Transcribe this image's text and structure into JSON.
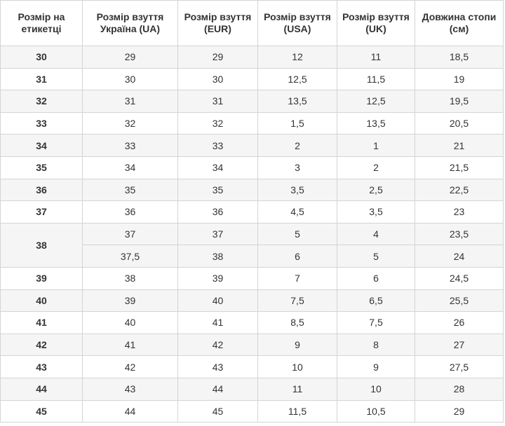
{
  "table": {
    "header": [
      "Розмір на етикетці",
      "Розмір взуття Україна (UA)",
      "Розмір взуття (EUR)",
      "Розмір взуття (USA)",
      "Розмір взуття (UK)",
      "Довжина стопи (см)"
    ],
    "rows": [
      {
        "label": "30",
        "cells": [
          [
            "29",
            "29",
            "12",
            "11",
            "18,5"
          ]
        ]
      },
      {
        "label": "31",
        "cells": [
          [
            "30",
            "30",
            "12,5",
            "11,5",
            "19"
          ]
        ]
      },
      {
        "label": "32",
        "cells": [
          [
            "31",
            "31",
            "13,5",
            "12,5",
            "19,5"
          ]
        ]
      },
      {
        "label": "33",
        "cells": [
          [
            "32",
            "32",
            "1,5",
            "13,5",
            "20,5"
          ]
        ]
      },
      {
        "label": "34",
        "cells": [
          [
            "33",
            "33",
            "2",
            "1",
            "21"
          ]
        ]
      },
      {
        "label": "35",
        "cells": [
          [
            "34",
            "34",
            "3",
            "2",
            "21,5"
          ]
        ]
      },
      {
        "label": "36",
        "cells": [
          [
            "35",
            "35",
            "3,5",
            "2,5",
            "22,5"
          ]
        ]
      },
      {
        "label": "37",
        "cells": [
          [
            "36",
            "36",
            "4,5",
            "3,5",
            "23"
          ]
        ]
      },
      {
        "label": "38",
        "cells": [
          [
            "37",
            "37",
            "5",
            "4",
            "23,5"
          ],
          [
            "37,5",
            "38",
            "6",
            "5",
            "24"
          ]
        ]
      },
      {
        "label": "39",
        "cells": [
          [
            "38",
            "39",
            "7",
            "6",
            "24,5"
          ]
        ]
      },
      {
        "label": "40",
        "cells": [
          [
            "39",
            "40",
            "7,5",
            "6,5",
            "25,5"
          ]
        ]
      },
      {
        "label": "41",
        "cells": [
          [
            "40",
            "41",
            "8,5",
            "7,5",
            "26"
          ]
        ]
      },
      {
        "label": "42",
        "cells": [
          [
            "41",
            "42",
            "9",
            "8",
            "27"
          ]
        ]
      },
      {
        "label": "43",
        "cells": [
          [
            "42",
            "43",
            "10",
            "9",
            "27,5"
          ]
        ]
      },
      {
        "label": "44",
        "cells": [
          [
            "43",
            "44",
            "11",
            "10",
            "28"
          ]
        ]
      },
      {
        "label": "45",
        "cells": [
          [
            "44",
            "45",
            "11,5",
            "10,5",
            "29"
          ]
        ]
      }
    ]
  }
}
